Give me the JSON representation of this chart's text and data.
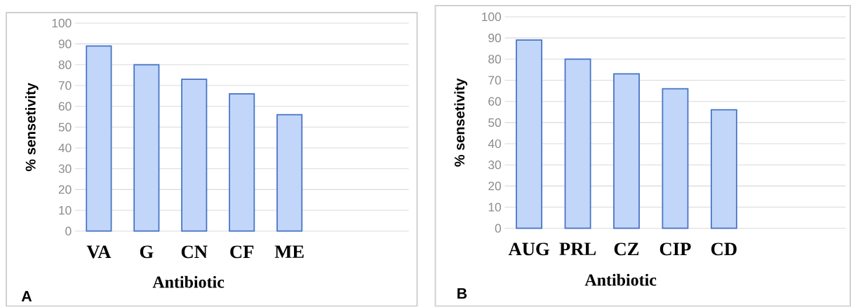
{
  "chart_data": [
    {
      "type": "bar",
      "categories": [
        "VA",
        "G",
        "CN",
        "CF",
        "ME"
      ],
      "values": [
        89,
        80,
        73,
        66,
        56
      ],
      "color": "#c2d6fa",
      "xlabel": "Antibiotic",
      "ylabel": "% sensetivity",
      "ylim": [
        0,
        100
      ],
      "yticks": [
        0,
        10,
        20,
        30,
        40,
        50,
        60,
        70,
        80,
        90,
        100
      ],
      "grid": "y",
      "annotations": [
        "A"
      ]
    },
    {
      "type": "bar",
      "categories": [
        "AUG",
        "PRL",
        "CZ",
        "CIP",
        "CD"
      ],
      "values": [
        89,
        80,
        73,
        66,
        56
      ],
      "color": "#c2d6fa",
      "xlabel": "Antibiotic",
      "ylabel": "% sensetivity",
      "ylim": [
        0,
        100
      ],
      "yticks": [
        0,
        10,
        20,
        30,
        40,
        50,
        60,
        70,
        80,
        90,
        100
      ],
      "grid": "y",
      "annotations": [
        "B"
      ]
    }
  ]
}
